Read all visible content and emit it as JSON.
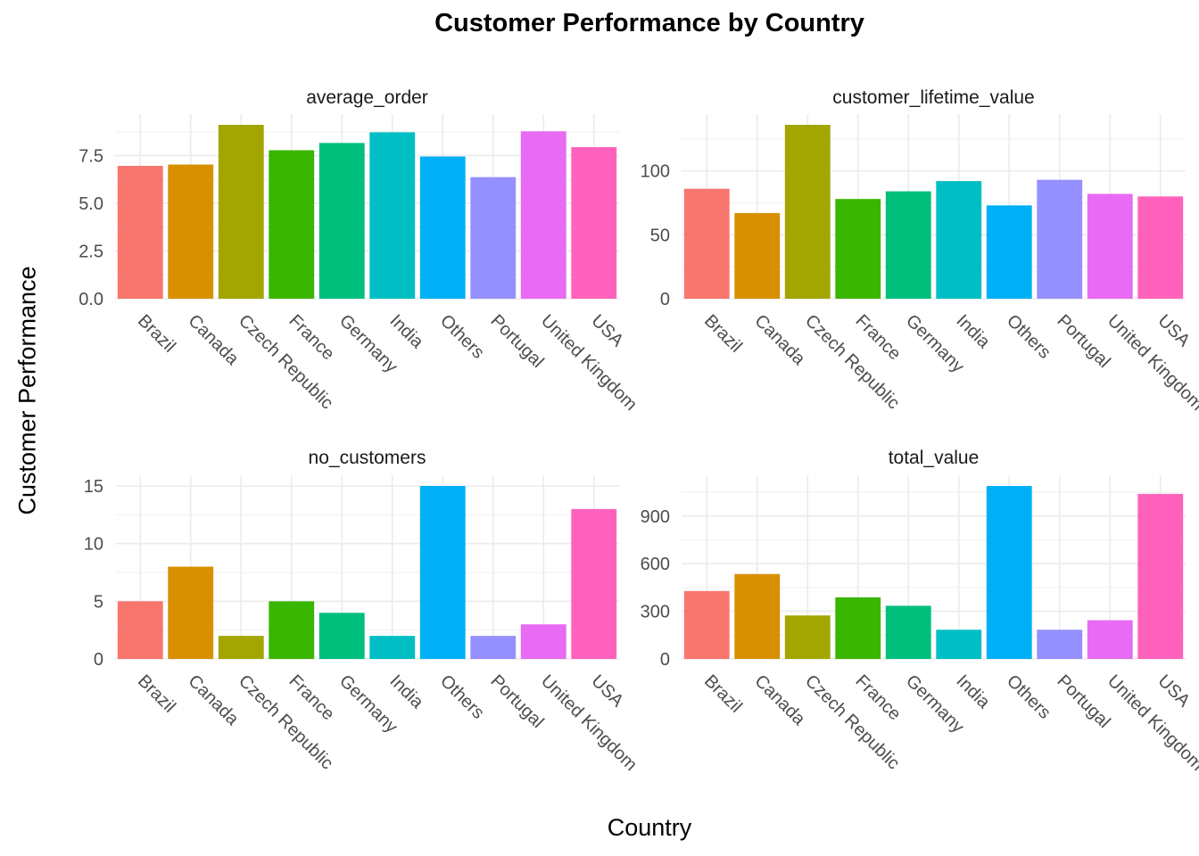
{
  "title": "Customer Performance by Country",
  "xlabel": "Country",
  "ylabel": "Customer Performance",
  "chart_data": {
    "type": "bar",
    "categories": [
      "Brazil",
      "Canada",
      "Czech Republic",
      "France",
      "Germany",
      "India",
      "Others",
      "Portugal",
      "United Kingdom",
      "USA"
    ],
    "colors": [
      "#F8766D",
      "#D89000",
      "#A3A500",
      "#39B600",
      "#00BF7D",
      "#00BFC4",
      "#00B0F6",
      "#9590FF",
      "#E76BF3",
      "#FF62BC"
    ],
    "grid": true,
    "legend": "none",
    "panels": [
      {
        "name": "average_order",
        "values": [
          6.96,
          7.03,
          9.11,
          7.78,
          8.16,
          8.72,
          7.45,
          6.37,
          8.77,
          7.94
        ],
        "ylim": [
          0,
          9.11
        ],
        "yticks": [
          0.0,
          2.5,
          5.0,
          7.5
        ],
        "ytick_labels": [
          "0.0",
          "2.5",
          "5.0",
          "7.5"
        ]
      },
      {
        "name": "customer_lifetime_value",
        "values": [
          86,
          67,
          136,
          78,
          84,
          92,
          73,
          93,
          82,
          80
        ],
        "ylim": [
          0,
          136
        ],
        "yticks": [
          0,
          50,
          100
        ],
        "ytick_labels": [
          "0",
          "50",
          "100"
        ]
      },
      {
        "name": "no_customers",
        "values": [
          5,
          8,
          2,
          5,
          4,
          2,
          15,
          2,
          3,
          13
        ],
        "ylim": [
          0,
          15
        ],
        "yticks": [
          0,
          5,
          10,
          15
        ],
        "ytick_labels": [
          "0",
          "5",
          "10",
          "15"
        ]
      },
      {
        "name": "total_value",
        "values": [
          428,
          535,
          274,
          388,
          335,
          184,
          1090,
          184,
          244,
          1040
        ],
        "ylim": [
          0,
          1090
        ],
        "yticks": [
          0,
          300,
          600,
          900
        ],
        "ytick_labels": [
          "0",
          "300",
          "600",
          "900"
        ]
      }
    ]
  }
}
